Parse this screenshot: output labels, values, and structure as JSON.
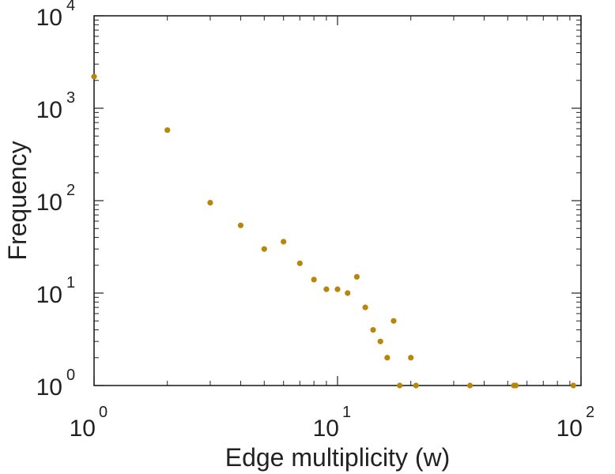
{
  "chart_data": {
    "type": "scatter",
    "title": "",
    "xlabel": "Edge multiplicity (w)",
    "ylabel": "Frequency",
    "xscale": "log",
    "yscale": "log",
    "xlim": [
      1,
      100
    ],
    "ylim": [
      1,
      10000
    ],
    "grid": false,
    "legend": "none",
    "marker_color": "#B8860B",
    "x_ticks": [
      {
        "base": "10",
        "exp": "0",
        "value": 1
      },
      {
        "base": "10",
        "exp": "1",
        "value": 10
      },
      {
        "base": "10",
        "exp": "2",
        "value": 100
      }
    ],
    "y_ticks": [
      {
        "base": "10",
        "exp": "0",
        "value": 1
      },
      {
        "base": "10",
        "exp": "1",
        "value": 10
      },
      {
        "base": "10",
        "exp": "2",
        "value": 100
      },
      {
        "base": "10",
        "exp": "3",
        "value": 1000
      },
      {
        "base": "10",
        "exp": "4",
        "value": 10000
      }
    ],
    "points": [
      {
        "x": 1,
        "y": 2200
      },
      {
        "x": 2,
        "y": 580
      },
      {
        "x": 3,
        "y": 95
      },
      {
        "x": 4,
        "y": 54
      },
      {
        "x": 5,
        "y": 30
      },
      {
        "x": 6,
        "y": 36
      },
      {
        "x": 7,
        "y": 21
      },
      {
        "x": 8,
        "y": 14
      },
      {
        "x": 9,
        "y": 11
      },
      {
        "x": 10,
        "y": 11
      },
      {
        "x": 11,
        "y": 10
      },
      {
        "x": 12,
        "y": 15
      },
      {
        "x": 13,
        "y": 7
      },
      {
        "x": 14,
        "y": 4
      },
      {
        "x": 15,
        "y": 3
      },
      {
        "x": 16,
        "y": 2
      },
      {
        "x": 17,
        "y": 5
      },
      {
        "x": 18,
        "y": 1
      },
      {
        "x": 20,
        "y": 2
      },
      {
        "x": 21,
        "y": 1
      },
      {
        "x": 35,
        "y": 1
      },
      {
        "x": 53,
        "y": 1
      },
      {
        "x": 54,
        "y": 1
      },
      {
        "x": 93,
        "y": 1
      }
    ]
  }
}
